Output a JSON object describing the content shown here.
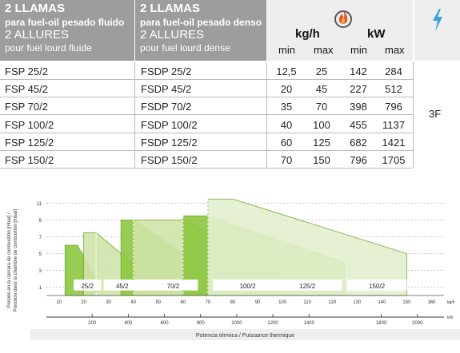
{
  "header": {
    "col1": {
      "title": "2 LLAMAS",
      "sub1": "para fuel-oil pesado fluido",
      "title2": "2 ALLURES",
      "sub2": "pour fuel lourd fluide"
    },
    "col2": {
      "title": "2 LLAMAS",
      "sub1": "para fuel-oil pesado denso",
      "title2": "2 ALLURES",
      "sub2": "pour fuel lourd dense"
    },
    "unit1": "kg/h",
    "unit2": "kW",
    "min": "min",
    "max": "max",
    "flame_icon": "flame-icon",
    "electric_icon": "lightning-icon"
  },
  "rows": [
    {
      "fluid": "FSP 25/2",
      "dense": "FSDP 25/2",
      "kg_min": "12,5",
      "kg_max": "25",
      "kw_min": "142",
      "kw_max": "284"
    },
    {
      "fluid": "FSP 45/2",
      "dense": "FSDP 45/2",
      "kg_min": "20",
      "kg_max": "45",
      "kw_min": "227",
      "kw_max": "512"
    },
    {
      "fluid": "FSP 70/2",
      "dense": "FSDP 70/2",
      "kg_min": "35",
      "kg_max": "70",
      "kw_min": "398",
      "kw_max": "796"
    },
    {
      "fluid": "FSP 100/2",
      "dense": "FSDP 100/2",
      "kg_min": "40",
      "kg_max": "100",
      "kw_min": "455",
      "kw_max": "1137"
    },
    {
      "fluid": "FSP 125/2",
      "dense": "FSDP 125/2",
      "kg_min": "60",
      "kg_max": "125",
      "kw_min": "682",
      "kw_max": "1421"
    },
    {
      "fluid": "FSP 150/2",
      "dense": "FSDP 150/2",
      "kg_min": "70",
      "kg_max": "150",
      "kw_min": "796",
      "kw_max": "1705"
    }
  ],
  "electric": "3F",
  "chart_data": {
    "type": "area",
    "ylabel1": "Presión en la cámara de combustión [mbar] /",
    "ylabel2": "Pression dans la chambre de combustion [mbar]",
    "xlabel": "Potencia térmica / Puissance thermique",
    "x_unit": "kg/h",
    "x2_unit": "kW",
    "x_ticks": [
      10,
      20,
      30,
      40,
      50,
      60,
      70,
      80,
      90,
      100,
      110,
      120,
      130,
      140,
      150,
      160
    ],
    "x_tick_labels": [
      "10",
      "20",
      "30",
      "40",
      "50",
      "60",
      "70",
      "80",
      "90",
      "100",
      "110",
      "120",
      "130",
      "140",
      "150",
      "160"
    ],
    "x2_ticks": [
      200,
      400,
      600,
      800,
      1000,
      1200,
      1400,
      1800,
      2000
    ],
    "y_ticks": [
      1,
      3,
      5,
      7,
      9,
      11
    ],
    "xlim": [
      5,
      165
    ],
    "ylim": [
      0,
      12
    ],
    "series": [
      {
        "name": "25/2",
        "points": [
          [
            12.5,
            6
          ],
          [
            17.5,
            6
          ],
          [
            25,
            2
          ],
          [
            25,
            0
          ],
          [
            12.5,
            0
          ]
        ],
        "color": "#8dc63f"
      },
      {
        "name": "45/2",
        "points": [
          [
            20,
            7.5
          ],
          [
            25,
            7.5
          ],
          [
            45,
            2.5
          ],
          [
            45,
            0
          ],
          [
            20,
            0
          ]
        ],
        "color": "#cfe3a8"
      },
      {
        "name": "70/2",
        "points": [
          [
            35,
            9
          ],
          [
            40,
            9
          ],
          [
            70,
            3
          ],
          [
            70,
            0
          ],
          [
            35,
            0
          ]
        ],
        "color": "#8dc63f"
      },
      {
        "name": "100/2",
        "points": [
          [
            40,
            9
          ],
          [
            60,
            9
          ],
          [
            100,
            3.5
          ],
          [
            100,
            0
          ],
          [
            40,
            0
          ]
        ],
        "color": "#cfe3a8"
      },
      {
        "name": "125/2",
        "points": [
          [
            60,
            9.5
          ],
          [
            70,
            9.5
          ],
          [
            125,
            4
          ],
          [
            125,
            0
          ],
          [
            60,
            0
          ]
        ],
        "color": "#8dc63f"
      },
      {
        "name": "150/2",
        "points": [
          [
            70,
            11.5
          ],
          [
            80,
            11.5
          ],
          [
            150,
            5
          ],
          [
            150,
            0
          ],
          [
            70,
            0
          ]
        ],
        "color": "#e3efcf"
      }
    ],
    "labels": [
      {
        "text": "25/2",
        "x": 21.5
      },
      {
        "text": "45/2",
        "x": 35.5
      },
      {
        "text": "70/2",
        "x": 56
      },
      {
        "text": "100/2",
        "x": 86
      },
      {
        "text": "125/2",
        "x": 110
      },
      {
        "text": "150/2",
        "x": 138
      }
    ]
  }
}
